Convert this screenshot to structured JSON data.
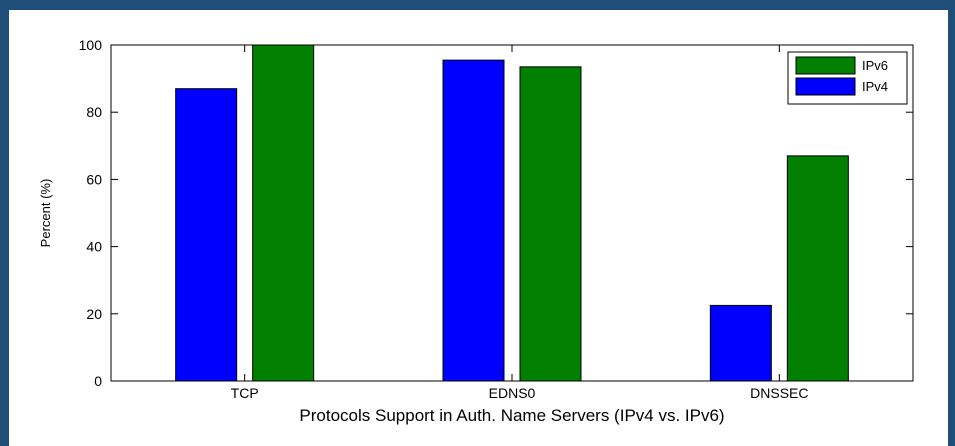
{
  "chart_data": {
    "type": "bar",
    "categories": [
      "TCP",
      "EDNS0",
      "DNSSEC"
    ],
    "series": [
      {
        "name": "IPv4",
        "values": [
          87,
          95.5,
          22.5
        ],
        "color": "#0000ff"
      },
      {
        "name": "IPv6",
        "values": [
          100,
          93.5,
          67
        ],
        "color": "#007f00"
      }
    ],
    "xlabel": "Protocols Support in Auth. Name Servers (IPv4 vs. IPv6)",
    "ylabel": "Percent (%)",
    "ylim": [
      0,
      100
    ],
    "yticks": [
      0,
      20,
      40,
      60,
      80,
      100
    ],
    "legend": {
      "placement": "top-right",
      "order": [
        "IPv6",
        "IPv4"
      ]
    },
    "grid": false
  },
  "colors": {
    "page_background": "#1f4e79",
    "plot_background": "#ffffff"
  }
}
